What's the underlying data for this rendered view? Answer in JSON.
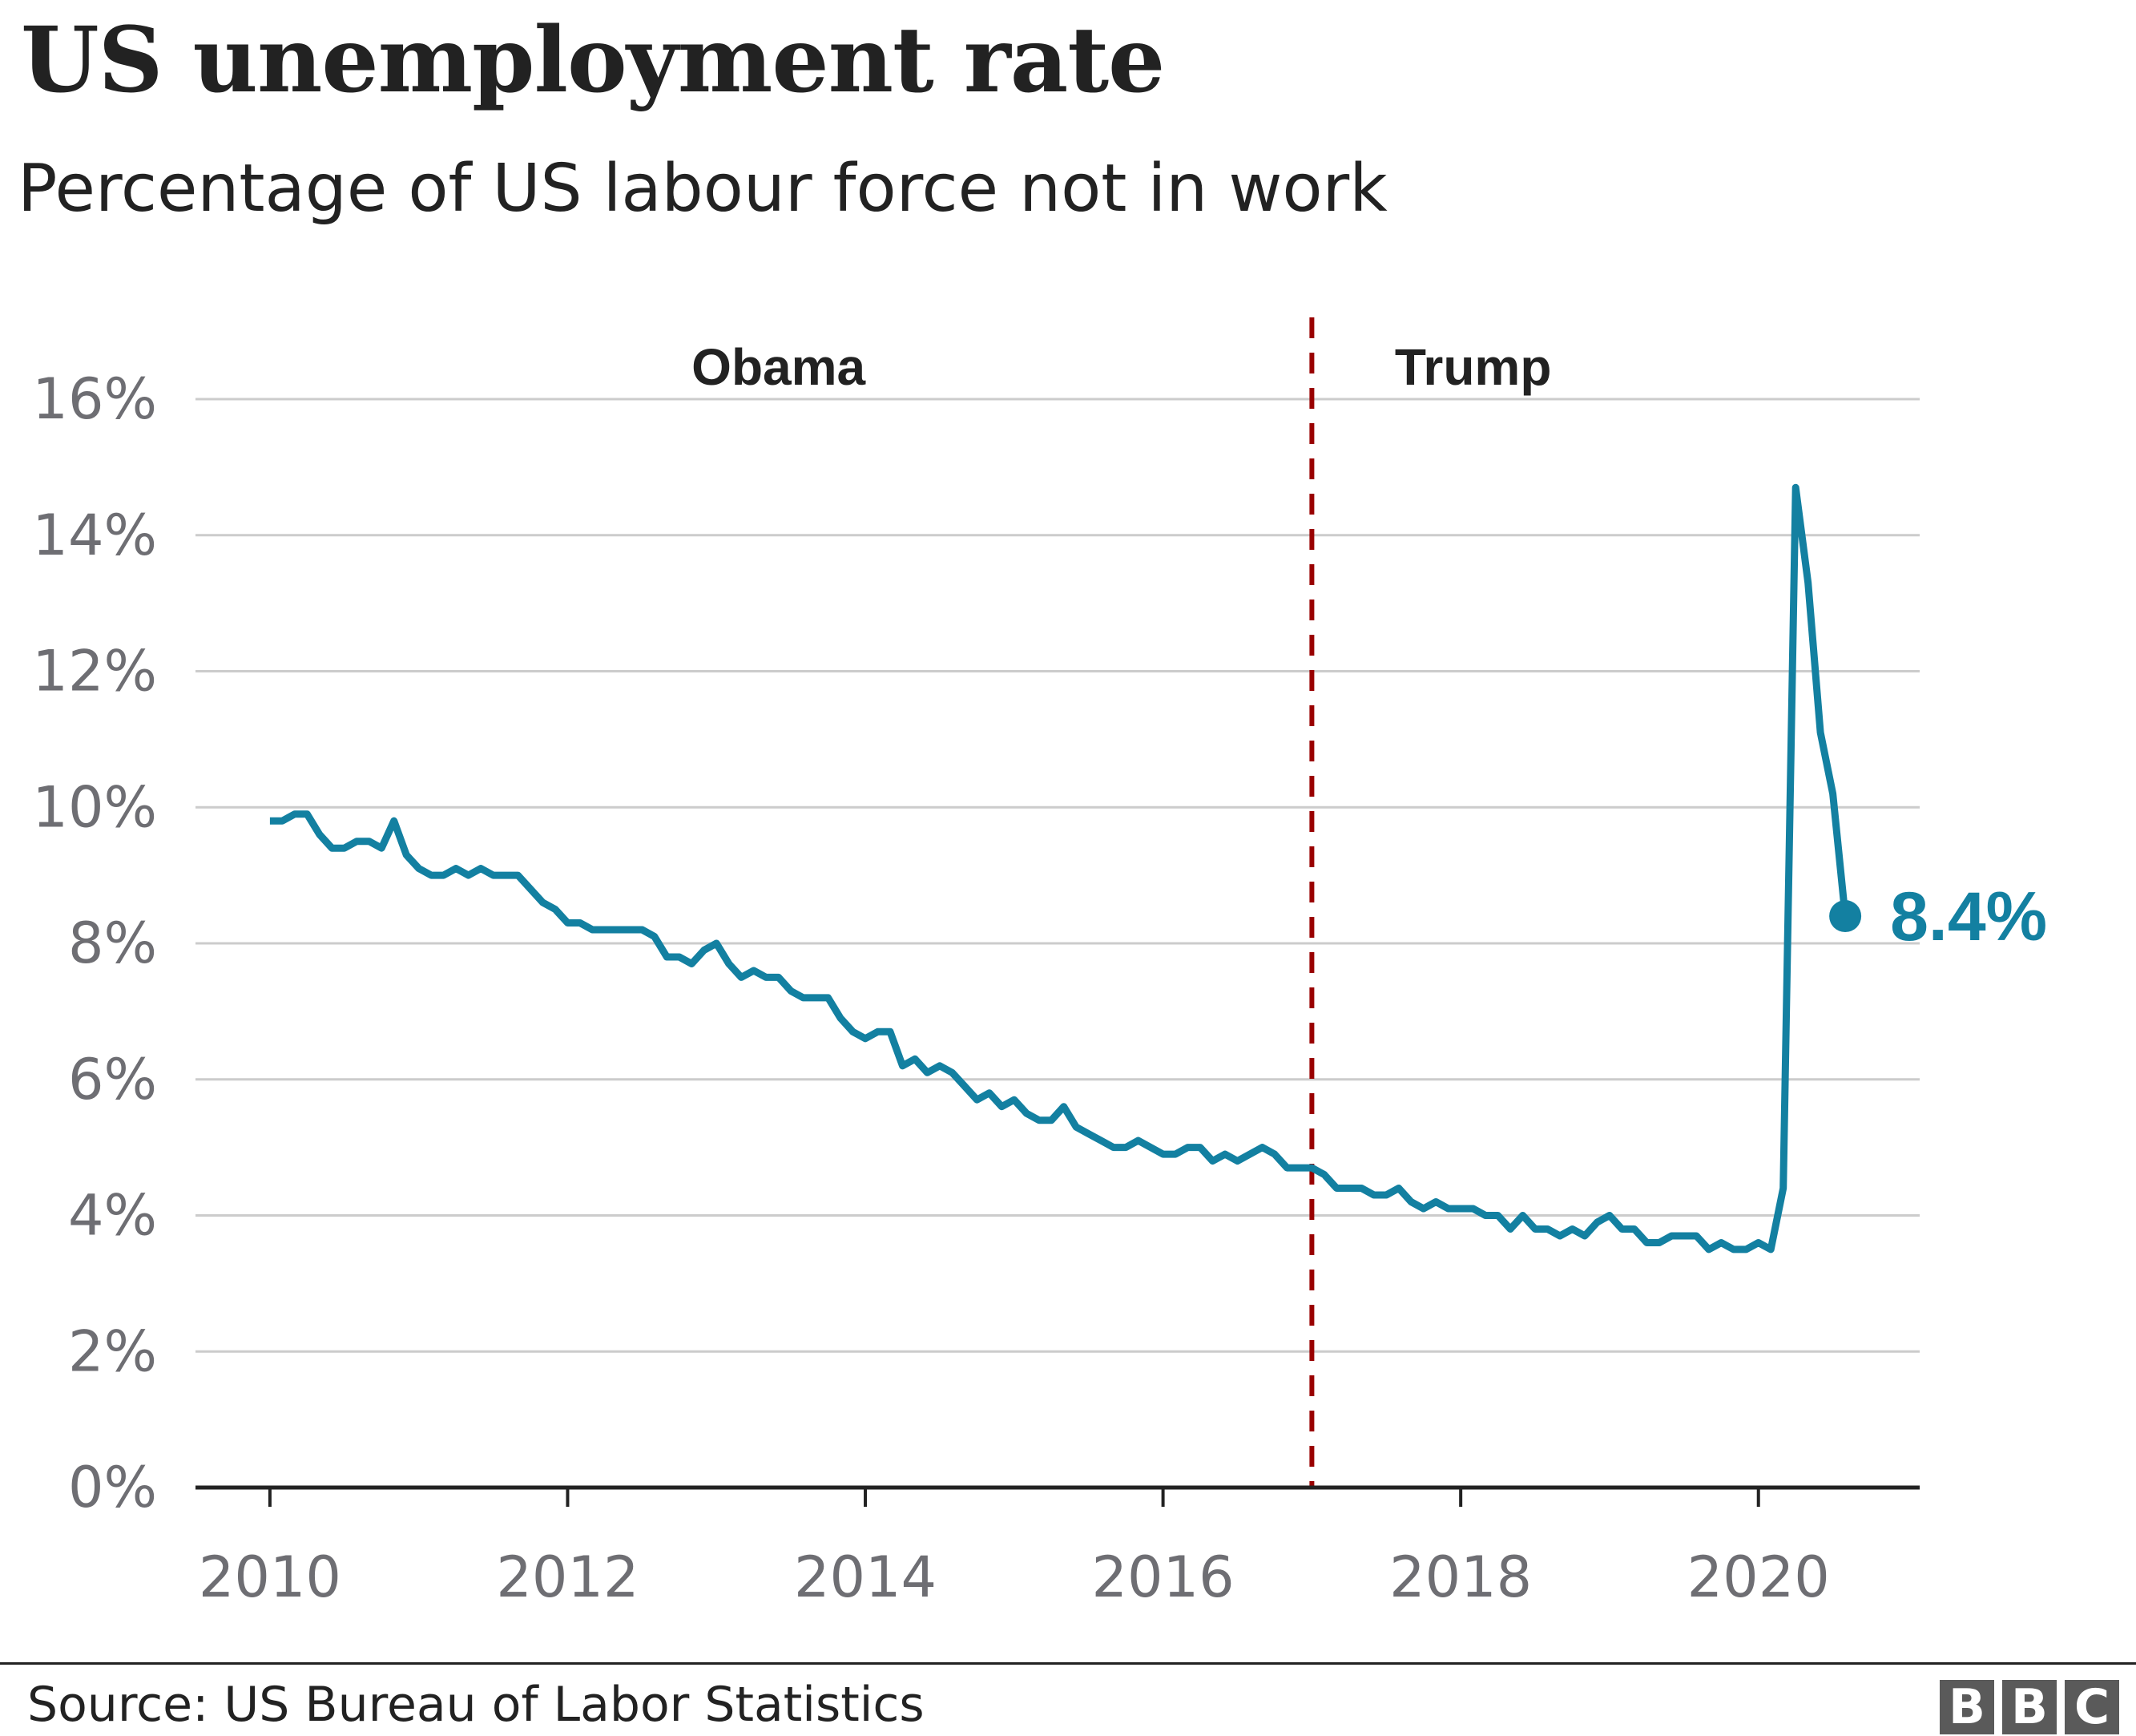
{
  "title": "US unemployment rate",
  "subtitle": "Percentage of US labour force not in work",
  "source": "Source: US Bureau of Labor Statistics",
  "logo": {
    "letters": [
      "B",
      "B",
      "C"
    ]
  },
  "colors": {
    "line": "#1380a1",
    "divider": "#990000",
    "grid": "#cccccc",
    "axis": "#222222",
    "tick": "#6e6e73"
  },
  "chart_data": {
    "type": "line",
    "title": "US unemployment rate",
    "subtitle": "Percentage of US labour force not in work",
    "ylim": [
      0,
      16
    ],
    "yticks": [
      0,
      2,
      4,
      6,
      8,
      10,
      12,
      14,
      16
    ],
    "ytick_labels": [
      "0%",
      "2%",
      "4%",
      "6%",
      "8%",
      "10%",
      "12%",
      "14%",
      "16%"
    ],
    "xlim": [
      "2009-07",
      "2021-02"
    ],
    "xticks": [
      "2010-01",
      "2012-01",
      "2014-01",
      "2016-01",
      "2018-01",
      "2020-01"
    ],
    "xtick_labels": [
      "2010",
      "2012",
      "2014",
      "2016",
      "2018",
      "2020"
    ],
    "grid": true,
    "divider": {
      "date": "2017-01",
      "style": "dashed"
    },
    "period_labels": [
      {
        "label": "Obama",
        "date": "2013-06"
      },
      {
        "label": "Trump",
        "date": "2018-02"
      }
    ],
    "end_label": "8.4%",
    "series": [
      {
        "start": "2010-01",
        "frequency": "monthly",
        "values": [
          9.8,
          9.8,
          9.9,
          9.9,
          9.6,
          9.4,
          9.4,
          9.5,
          9.5,
          9.4,
          9.8,
          9.3,
          9.1,
          9.0,
          9.0,
          9.1,
          9.0,
          9.1,
          9.0,
          9.0,
          9.0,
          8.8,
          8.6,
          8.5,
          8.3,
          8.3,
          8.2,
          8.2,
          8.2,
          8.2,
          8.2,
          8.1,
          7.8,
          7.8,
          7.7,
          7.9,
          8.0,
          7.7,
          7.5,
          7.6,
          7.5,
          7.5,
          7.3,
          7.2,
          7.2,
          7.2,
          6.9,
          6.7,
          6.6,
          6.7,
          6.7,
          6.2,
          6.3,
          6.1,
          6.2,
          6.1,
          5.9,
          5.7,
          5.8,
          5.6,
          5.7,
          5.5,
          5.4,
          5.4,
          5.6,
          5.3,
          5.2,
          5.1,
          5.0,
          5.0,
          5.1,
          5.0,
          4.9,
          4.9,
          5.0,
          5.0,
          4.8,
          4.9,
          4.8,
          4.9,
          5.0,
          4.9,
          4.7,
          4.7,
          4.7,
          4.6,
          4.4,
          4.4,
          4.4,
          4.3,
          4.3,
          4.4,
          4.2,
          4.1,
          4.2,
          4.1,
          4.1,
          4.1,
          4.0,
          4.0,
          3.8,
          4.0,
          3.8,
          3.8,
          3.7,
          3.8,
          3.7,
          3.9,
          4.0,
          3.8,
          3.8,
          3.6,
          3.6,
          3.7,
          3.7,
          3.7,
          3.5,
          3.6,
          3.5,
          3.5,
          3.6,
          3.5,
          4.4,
          14.7,
          13.3,
          11.1,
          10.2,
          8.4
        ]
      }
    ]
  }
}
